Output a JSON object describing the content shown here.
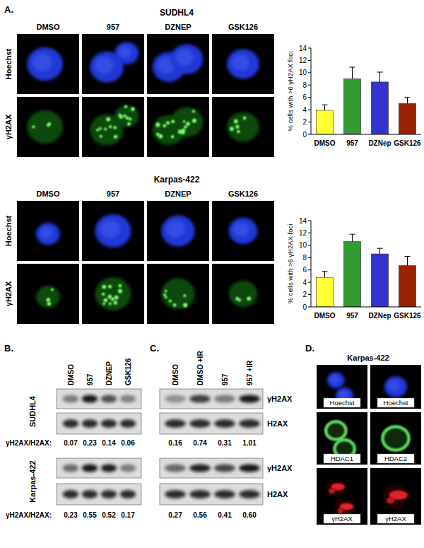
{
  "chart_data": [
    {
      "type": "bar",
      "ylabel": "% cells with >6 γH2AX foci",
      "categories": [
        "DMSO",
        "957",
        "DZNep",
        "GSK126"
      ],
      "values": [
        3.9,
        9.0,
        8.5,
        5.0
      ],
      "errors": [
        0.9,
        1.9,
        1.6,
        1.0
      ],
      "colors": [
        "#ffff33",
        "#339933",
        "#3333cc",
        "#992200"
      ],
      "ylim": [
        0,
        14
      ],
      "yticks": [
        0,
        2,
        4,
        6,
        8,
        10,
        12,
        14
      ]
    },
    {
      "type": "bar",
      "ylabel": "% cells with >6 γH2AX foci",
      "categories": [
        "DMSO",
        "957",
        "DZNep",
        "GSK126"
      ],
      "values": [
        4.8,
        10.6,
        8.6,
        6.7
      ],
      "errors": [
        1.0,
        1.2,
        0.9,
        1.5
      ],
      "colors": [
        "#ffff33",
        "#339933",
        "#3333cc",
        "#992200"
      ],
      "ylim": [
        0,
        14
      ],
      "yticks": [
        0,
        2,
        4,
        6,
        8,
        10,
        12,
        14
      ]
    }
  ],
  "figure": {
    "panel_a": {
      "label": "A.",
      "rows": [
        {
          "cell_line": "SUDHL4",
          "stains": [
            "Hoechst",
            "γH2AX"
          ],
          "treatments": [
            "DMSO",
            "957",
            "DZNEP",
            "GSK126"
          ]
        },
        {
          "cell_line": "Karpas-422",
          "stains": [
            "Hoechst",
            "γH2AX"
          ],
          "treatments": [
            "DMSO",
            "957",
            "DZNEP",
            "GSK126"
          ]
        }
      ]
    },
    "panel_b": {
      "label": "B.",
      "treatments": [
        "DMSO",
        "957",
        "DZNEP",
        "GSK126"
      ],
      "ratio_label": "γH2AX/H2AX:",
      "blots": [
        {
          "cell_line": "SUDHL4",
          "ratios": [
            "0.07",
            "0.23",
            "0.14",
            "0.06"
          ]
        },
        {
          "cell_line": "Karpas-422",
          "ratios": [
            "0.23",
            "0.55",
            "0.52",
            "0.17"
          ]
        }
      ]
    },
    "panel_c": {
      "label": "C.",
      "treatments": [
        "DMSO",
        "DMSO +IR",
        "957",
        "957 +IR"
      ],
      "proteins": [
        "γH2AX",
        "H2AX"
      ],
      "ratios": [
        [
          "0.16",
          "0.74",
          "0.31",
          "1.01"
        ],
        [
          "0.27",
          "0.56",
          "0.41",
          "0.60"
        ]
      ]
    },
    "panel_d": {
      "label": "D.",
      "title": "Karpas-422",
      "columns": [
        [
          "Hoechst",
          "HDAC1",
          "γH2AX"
        ],
        [
          "Hoechst",
          "HDAC2",
          "γH2AX"
        ]
      ]
    }
  }
}
